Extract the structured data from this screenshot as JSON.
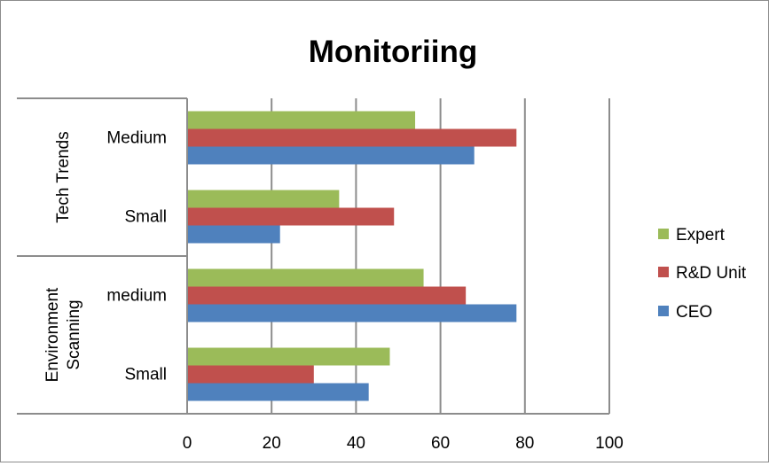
{
  "chart_data": {
    "type": "bar",
    "orientation": "horizontal",
    "title": "Monitoriing",
    "xlabel": "",
    "ylabel": "",
    "xlim": [
      0,
      100
    ],
    "x_ticks": [
      "0",
      "20",
      "40",
      "60",
      "80",
      "100"
    ],
    "grid": "vertical major gridlines",
    "legend_position": "right",
    "groups": [
      {
        "label": "Tech Trends",
        "categories": [
          "Medium",
          "Small"
        ]
      },
      {
        "label": "Environment Scanning",
        "label_lines": [
          "Environment",
          "Scanning"
        ],
        "categories": [
          "medium",
          "Small"
        ]
      }
    ],
    "categories": [
      "Tech Trends / Medium",
      "Tech Trends / Small",
      "Environment Scanning / medium",
      "Environment Scanning / Small"
    ],
    "series": [
      {
        "name": "Expert",
        "color": "#9BBB59",
        "values": [
          54,
          36,
          56,
          48
        ]
      },
      {
        "name": "R&D Unit",
        "color": "#C0504D",
        "values": [
          78,
          49,
          66,
          30
        ]
      },
      {
        "name": "CEO",
        "color": "#4F81BD",
        "values": [
          68,
          22,
          78,
          43
        ]
      }
    ]
  }
}
